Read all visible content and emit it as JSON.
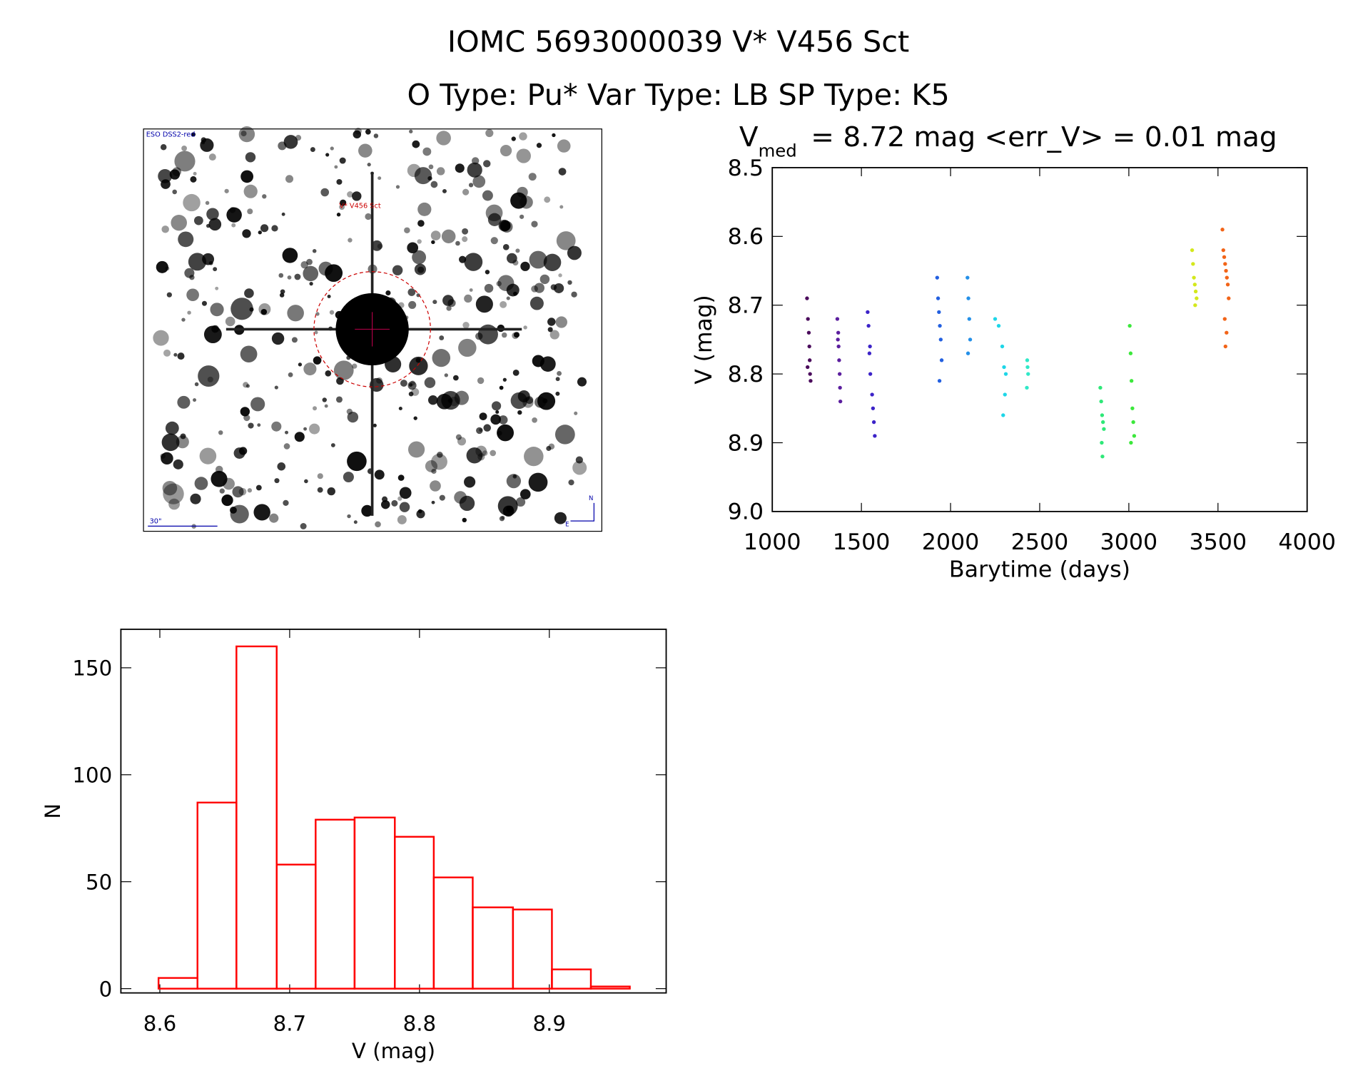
{
  "title": "IOMC 5693000039   V* V456 Sct",
  "subtitle": "O Type: Pu*  Var Type: LB  SP Type: K5",
  "image": {
    "labels": [
      "ESO DSS2-red",
      "V* V456 Sct",
      "30\"",
      "N",
      "E"
    ]
  },
  "chart_data": [
    {
      "type": "scatter",
      "title": "V",
      "title_subscript": "med",
      "title_suffix": "= 8.72 mag <err_V> = 0.01 mag",
      "x_label": "Barytime (days)",
      "y_label": "V (mag)",
      "xlim": [
        1000,
        4000
      ],
      "xticks": [
        1000,
        1500,
        2000,
        2500,
        3000,
        3500,
        4000
      ],
      "ylim": [
        9.0,
        8.5
      ],
      "yticks": [
        8.5,
        8.6,
        8.7,
        8.8,
        8.9,
        {
          "value": 9.0,
          "label": "9.0"
        }
      ],
      "series": [
        {
          "color": "#4b0c5c",
          "x": [
            1195,
            1200,
            1205,
            1208,
            1210,
            1212,
            1215,
            1198
          ],
          "values": [
            8.69,
            8.72,
            8.74,
            8.76,
            8.78,
            8.8,
            8.81,
            8.79
          ]
        },
        {
          "color": "#5b1e9e",
          "x": [
            1365,
            1370,
            1372,
            1375,
            1378,
            1380,
            1382,
            1368
          ],
          "values": [
            8.72,
            8.74,
            8.76,
            8.78,
            8.8,
            8.82,
            8.84,
            8.75
          ]
        },
        {
          "color": "#3c23c8",
          "x": [
            1535,
            1540,
            1545,
            1550,
            1560,
            1565,
            1570,
            1575,
            1548
          ],
          "values": [
            8.71,
            8.73,
            8.77,
            8.8,
            8.83,
            8.85,
            8.87,
            8.89,
            8.76
          ]
        },
        {
          "color": "#2360e0",
          "x": [
            1925,
            1930,
            1935,
            1940,
            1945,
            1950,
            1938
          ],
          "values": [
            8.66,
            8.69,
            8.71,
            8.73,
            8.75,
            8.78,
            8.81
          ]
        },
        {
          "color": "#2490e8",
          "x": [
            2095,
            2100,
            2105,
            2110,
            2098
          ],
          "values": [
            8.66,
            8.69,
            8.72,
            8.75,
            8.77
          ]
        },
        {
          "color": "#1ed6e8",
          "x": [
            2250,
            2270,
            2290,
            2300,
            2310,
            2305,
            2295
          ],
          "values": [
            8.72,
            8.73,
            8.76,
            8.79,
            8.8,
            8.83,
            8.86
          ]
        },
        {
          "color": "#30e8c8",
          "x": [
            2430,
            2432,
            2435,
            2428
          ],
          "values": [
            8.78,
            8.79,
            8.8,
            8.82
          ]
        },
        {
          "color": "#2ee878",
          "x": [
            2840,
            2845,
            2850,
            2855,
            2860,
            2848,
            2852
          ],
          "values": [
            8.82,
            8.84,
            8.86,
            8.87,
            8.88,
            8.9,
            8.92
          ]
        },
        {
          "color": "#3ce83c",
          "x": [
            3005,
            3010,
            3015,
            3020,
            3025,
            3030,
            3012
          ],
          "values": [
            8.73,
            8.77,
            8.81,
            8.85,
            8.87,
            8.89,
            8.9
          ]
        },
        {
          "color": "#d4e81c",
          "x": [
            3355,
            3360,
            3365,
            3370,
            3375,
            3380,
            3372
          ],
          "values": [
            8.62,
            8.64,
            8.66,
            8.67,
            8.68,
            8.69,
            8.7
          ]
        },
        {
          "color": "#f26418",
          "x": [
            3525,
            3530,
            3535,
            3540,
            3545,
            3550,
            3555,
            3560,
            3538,
            3548,
            3542
          ],
          "values": [
            8.59,
            8.62,
            8.63,
            8.64,
            8.65,
            8.66,
            8.67,
            8.69,
            8.72,
            8.74,
            8.76
          ]
        }
      ]
    },
    {
      "type": "histogram",
      "x_label": "V (mag)",
      "y_label": "N",
      "color": "#ff0000",
      "bins": [
        8.599,
        8.629,
        8.659,
        8.69,
        8.72,
        8.75,
        8.781,
        8.811,
        8.841,
        8.872,
        8.902,
        8.932,
        8.962
      ],
      "values": [
        5,
        87,
        160,
        58,
        79,
        80,
        71,
        52,
        38,
        37,
        9,
        1
      ],
      "xlim": [
        8.57,
        8.99
      ],
      "xticks": [
        8.6,
        8.7,
        8.8,
        8.9
      ],
      "ylim": [
        -2,
        168
      ],
      "yticks": [
        0,
        50,
        100,
        150
      ]
    }
  ]
}
